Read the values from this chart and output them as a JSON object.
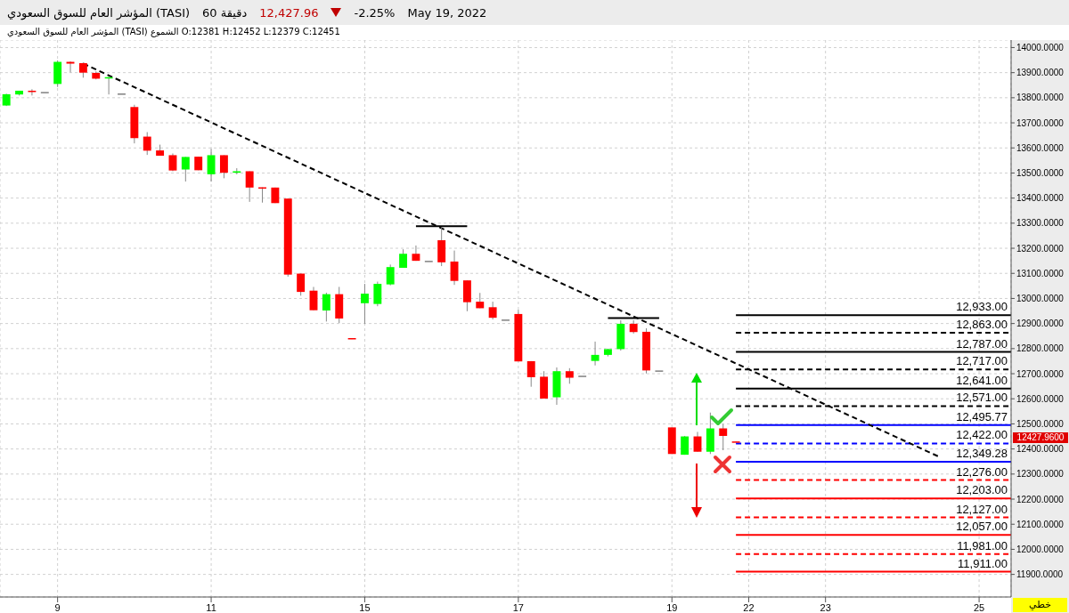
{
  "chart_data": {
    "type": "candlestick",
    "title": "المؤشر العام للسوق السعودي (TASI)",
    "subtitle": "60 دقيقة",
    "annotations": [
      "12,427.96",
      "-2.25%",
      "May 19, 2022",
      "المؤشر العام للسوق السعودي (TASI) الشموع O:12381 H:12452 L:12379 C:12451",
      "خطي",
      "12427.9600"
    ],
    "categories": [
      null,
      null,
      null,
      null,
      "9",
      null,
      null,
      null,
      null,
      null,
      null,
      null,
      null,
      null,
      null,
      null,
      "11",
      null,
      null,
      null,
      null,
      null,
      null,
      null,
      null,
      null,
      null,
      null,
      "15",
      null,
      null,
      null,
      null,
      null,
      null,
      null,
      null,
      null,
      null,
      null,
      "17",
      null,
      null,
      null,
      null,
      null,
      null,
      null,
      null,
      null,
      null,
      null,
      "19",
      null,
      null,
      null,
      null,
      null,
      "22",
      null,
      null,
      null,
      null,
      null,
      "23",
      null,
      null,
      null,
      null,
      null,
      null,
      null,
      null,
      null,
      null,
      null,
      "25",
      null,
      null
    ],
    "ohlc": [
      [
        13769,
        13816,
        13767,
        13814
      ],
      [
        13813,
        13828,
        13809,
        13828
      ],
      [
        13828,
        13834,
        13809,
        13825
      ],
      [
        13823,
        13823,
        13823,
        13823
      ],
      [
        13855,
        13949,
        13843,
        13943
      ],
      [
        13943,
        13945,
        13901,
        13936
      ],
      [
        13938,
        13940,
        13880,
        13900
      ],
      [
        13899,
        13905,
        13873,
        13876
      ],
      [
        13877,
        13883,
        13813,
        13882
      ],
      [
        13817,
        13817,
        13817,
        13817
      ],
      [
        13763,
        13772,
        13618,
        13639
      ],
      [
        13645,
        13663,
        13572,
        13589
      ],
      [
        13590,
        13613,
        13569,
        13569
      ],
      [
        13571,
        13578,
        13507,
        13510
      ],
      [
        13514,
        13564,
        13466,
        13564
      ],
      [
        13565,
        13565,
        13511,
        13511
      ],
      [
        13495,
        13596,
        13466,
        13571
      ],
      [
        13571,
        13571,
        13479,
        13501
      ],
      [
        13501,
        13519,
        13495,
        13507
      ],
      [
        13507,
        13507,
        13385,
        13442
      ],
      [
        13443,
        13443,
        13382,
        13438
      ],
      [
        13442,
        13442,
        13380,
        13380
      ],
      [
        13398,
        13398,
        13087,
        13095
      ],
      [
        13099,
        13099,
        13011,
        13026
      ],
      [
        13031,
        13046,
        12953,
        12953
      ],
      [
        12952,
        13023,
        12908,
        13017
      ],
      [
        13017,
        13046,
        12902,
        12920
      ],
      [
        12842,
        12842,
        12838,
        12838
      ],
      [
        12981,
        13058,
        12899,
        13019
      ],
      [
        12978,
        13067,
        12969,
        13058
      ],
      [
        13056,
        13135,
        13052,
        13125
      ],
      [
        13122,
        13196,
        13122,
        13178
      ],
      [
        13178,
        13211,
        13150,
        13150
      ],
      [
        13150,
        13150,
        13150,
        13150
      ],
      [
        13232,
        13282,
        13129,
        13144
      ],
      [
        13147,
        13191,
        13054,
        13070
      ],
      [
        13072,
        13072,
        12949,
        12985
      ],
      [
        12987,
        13022,
        12961,
        12961
      ],
      [
        12965,
        12987,
        12916,
        12923
      ],
      [
        12916,
        12916,
        12916,
        12916
      ],
      [
        12938,
        12955,
        12749,
        12749
      ],
      [
        12750,
        12750,
        12648,
        12686
      ],
      [
        12688,
        12710,
        12601,
        12601
      ],
      [
        12606,
        12725,
        12576,
        12710
      ],
      [
        12710,
        12722,
        12660,
        12684
      ],
      [
        12692,
        12692,
        12692,
        12692
      ],
      [
        12751,
        12828,
        12733,
        12775
      ],
      [
        12775,
        12800,
        12769,
        12798
      ],
      [
        12798,
        12913,
        12792,
        12899
      ],
      [
        12899,
        12913,
        12860,
        12866
      ],
      [
        12867,
        12881,
        12701,
        12713
      ],
      [
        12713,
        12713,
        12713,
        12713
      ],
      [
        12486,
        12486,
        12380,
        12380
      ],
      [
        12377,
        12452,
        12377,
        12450
      ],
      [
        12450,
        12468,
        12389,
        12389
      ],
      [
        12389,
        12545,
        12380,
        12482
      ],
      [
        12482,
        12499,
        12395,
        12452
      ],
      [
        12430,
        12430,
        12427,
        12428
      ],
      null,
      null,
      null,
      null,
      null,
      null,
      null,
      null,
      null,
      null,
      null,
      null,
      null,
      null,
      null,
      null,
      null,
      null,
      null,
      null,
      null
    ],
    "colors": [
      "#00ff00",
      "#00ff00",
      "#ff0000",
      "#808080",
      "#00ff00",
      "#ff0000",
      "#ff0000",
      "#ff0000",
      "#00ff00",
      "#808080",
      "#ff0000",
      "#ff0000",
      "#ff0000",
      "#ff0000",
      "#00ff00",
      "#ff0000",
      "#00ff00",
      "#ff0000",
      "#00ff00",
      "#ff0000",
      "#ff0000",
      "#ff0000",
      "#ff0000",
      "#ff0000",
      "#ff0000",
      "#00ff00",
      "#ff0000",
      "#ff0000",
      "#00ff00",
      "#00ff00",
      "#00ff00",
      "#00ff00",
      "#ff0000",
      "#808080",
      "#ff0000",
      "#ff0000",
      "#ff0000",
      "#ff0000",
      "#ff0000",
      "#808080",
      "#ff0000",
      "#ff0000",
      "#ff0000",
      "#00ff00",
      "#ff0000",
      "#808080",
      "#00ff00",
      "#00ff00",
      "#00ff00",
      "#ff0000",
      "#ff0000",
      "#808080",
      "#ff0000",
      "#00ff00",
      "#ff0000",
      "#00ff00",
      "#ff0000",
      "#ff0000",
      null,
      null,
      null,
      null,
      null,
      null,
      null,
      null,
      null,
      null,
      null,
      null,
      null,
      null,
      null,
      null,
      null,
      null,
      null,
      null,
      null
    ],
    "series": [
      {
        "type": "line",
        "color": "#000000",
        "line_style": "dashed",
        "values": [
          null,
          null,
          null,
          null,
          null,
          null,
          13936,
          null,
          null,
          null,
          null,
          null,
          null,
          null,
          null,
          null,
          null,
          null,
          null,
          null,
          null,
          null,
          null,
          null,
          null,
          null,
          null,
          null,
          null,
          null,
          null,
          null,
          null,
          null,
          null,
          null,
          null,
          null,
          null,
          null,
          null,
          null,
          null,
          null,
          null,
          null,
          null,
          null,
          null,
          null,
          null,
          null,
          null,
          null,
          null,
          null,
          null,
          null,
          null,
          null,
          null,
          null,
          null,
          null,
          null,
          null,
          null,
          null,
          null,
          null,
          null,
          null,
          null,
          12366,
          null,
          null,
          null,
          null,
          null
        ]
      },
      {
        "type": "line",
        "color": "#000000",
        "line_style": "solid",
        "values": [
          null,
          null,
          null,
          null,
          null,
          null,
          null,
          null,
          null,
          null,
          null,
          null,
          null,
          null,
          null,
          null,
          null,
          null,
          null,
          null,
          null,
          null,
          null,
          null,
          null,
          null,
          null,
          null,
          null,
          null,
          null,
          null,
          13288,
          null,
          null,
          null,
          13288,
          null,
          null,
          null,
          null,
          null,
          null,
          null,
          null,
          null,
          null,
          null,
          null,
          null,
          null,
          null,
          null,
          null,
          null,
          null,
          null,
          null,
          null,
          null,
          null,
          null,
          null,
          null,
          null,
          null,
          null,
          null,
          null,
          null,
          null,
          null,
          null,
          null,
          null,
          null,
          null,
          null,
          null
        ]
      },
      {
        "type": "line",
        "color": "#000000",
        "line_style": "solid",
        "values": [
          null,
          null,
          null,
          null,
          null,
          null,
          null,
          null,
          null,
          null,
          null,
          null,
          null,
          null,
          null,
          null,
          null,
          null,
          null,
          null,
          null,
          null,
          null,
          null,
          null,
          null,
          null,
          null,
          null,
          null,
          null,
          null,
          null,
          null,
          null,
          null,
          null,
          null,
          null,
          null,
          null,
          null,
          null,
          null,
          null,
          null,
          null,
          12922,
          null,
          null,
          null,
          12922,
          null,
          null,
          null,
          null,
          null,
          null,
          null,
          null,
          null,
          null,
          null,
          null,
          null,
          null,
          null,
          null,
          null,
          null,
          null,
          null,
          null,
          null,
          null,
          null,
          null,
          null,
          null
        ]
      }
    ],
    "marker": "none",
    "ref_lines": [
      {
        "axis": "y",
        "value": 12933,
        "label": "12,933.00",
        "color": "#000000",
        "line_style": "solid"
      },
      {
        "axis": "y",
        "value": 12863,
        "label": "12,863.00",
        "color": "#000000",
        "line_style": "dashed"
      },
      {
        "axis": "y",
        "value": 12787,
        "label": "12,787.00",
        "color": "#000000",
        "line_style": "solid"
      },
      {
        "axis": "y",
        "value": 12717,
        "label": "12,717.00",
        "color": "#000000",
        "line_style": "dashed"
      },
      {
        "axis": "y",
        "value": 12641,
        "label": "12,641.00",
        "color": "#000000",
        "line_style": "solid"
      },
      {
        "axis": "y",
        "value": 12571,
        "label": "12,571.00",
        "color": "#000000",
        "line_style": "dashed"
      },
      {
        "axis": "y",
        "value": 12495.77,
        "label": "12,495.77",
        "color": "#0000ff",
        "line_style": "solid"
      },
      {
        "axis": "y",
        "value": 12422,
        "label": "12,422.00",
        "color": "#0000ff",
        "line_style": "dashed"
      },
      {
        "axis": "y",
        "value": 12349.28,
        "label": "12,349.28",
        "color": "#0000ff",
        "line_style": "solid"
      },
      {
        "axis": "y",
        "value": 12276,
        "label": "12,276.00",
        "color": "#ff0000",
        "line_style": "dashed"
      },
      {
        "axis": "y",
        "value": 12203,
        "label": "12,203.00",
        "color": "#ff0000",
        "line_style": "solid"
      },
      {
        "axis": "y",
        "value": 12127,
        "label": "12,127.00",
        "color": "#ff0000",
        "line_style": "dashed"
      },
      {
        "axis": "y",
        "value": 12057,
        "label": "12,057.00",
        "color": "#ff0000",
        "line_style": "solid"
      },
      {
        "axis": "y",
        "value": 11981,
        "label": "11,981.00",
        "color": "#ff0000",
        "line_style": "dashed"
      },
      {
        "axis": "y",
        "value": 11911,
        "label": "11,911.00",
        "color": "#ff0000",
        "line_style": "solid"
      }
    ],
    "ylim": [
      11810,
      14030
    ],
    "yticks": [
      {
        "value": 11900,
        "label": "11900.0000"
      },
      {
        "value": 12000,
        "label": "12000.0000"
      },
      {
        "value": 12100,
        "label": "12100.0000"
      },
      {
        "value": 12200,
        "label": "12200.0000"
      },
      {
        "value": 12300,
        "label": "12300.0000"
      },
      {
        "value": 12400,
        "label": "12400.0000"
      },
      {
        "value": 12500,
        "label": "12500.0000"
      },
      {
        "value": 12600,
        "label": "12600.0000"
      },
      {
        "value": 12700,
        "label": "12700.0000"
      },
      {
        "value": 12800,
        "label": "12800.0000"
      },
      {
        "value": 12900,
        "label": "12900.0000"
      },
      {
        "value": 13000,
        "label": "13000.0000"
      },
      {
        "value": 13100,
        "label": "13100.0000"
      },
      {
        "value": 13200,
        "label": "13200.0000"
      },
      {
        "value": 13300,
        "label": "13300.0000"
      },
      {
        "value": 13400,
        "label": "13400.0000"
      },
      {
        "value": 13500,
        "label": "13500.0000"
      },
      {
        "value": 13600,
        "label": "13600.0000"
      },
      {
        "value": 13700,
        "label": "13700.0000"
      },
      {
        "value": 13800,
        "label": "13800.0000"
      },
      {
        "value": 13900,
        "label": "13900.0000"
      },
      {
        "value": 14000,
        "label": "14000.0000"
      }
    ],
    "grid": true
  }
}
